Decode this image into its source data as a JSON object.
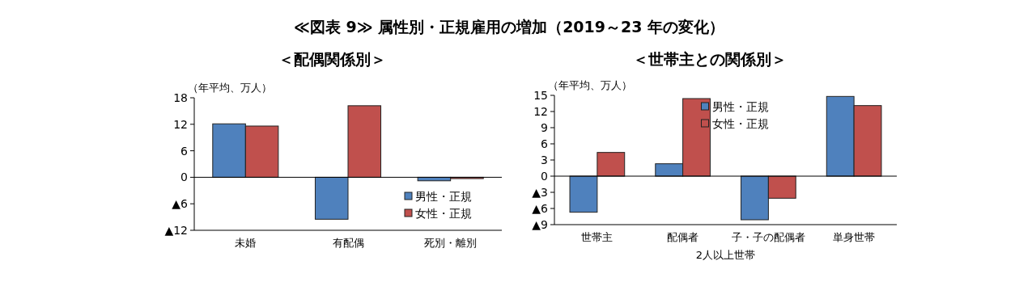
{
  "chart_data": [
    {
      "type": "bar",
      "title": "≪図表 9≫ 属性別・正規雇用の増加（2019～23 年の変化）",
      "subtitle": "＜配偶関係別＞",
      "ylabel": "（年平均、万人）",
      "categories": [
        "未婚",
        "有配偶",
        "死別・離別"
      ],
      "series": [
        {
          "name": "男性・正規",
          "color": "#4f81bd",
          "values": [
            12.1,
            -9.5,
            -0.8
          ]
        },
        {
          "name": "女性・正規",
          "color": "#c0504d",
          "values": [
            11.6,
            16.2,
            -0.3
          ]
        }
      ],
      "ylim": [
        -12,
        18
      ],
      "yticks": [
        {
          "value": -12,
          "label": "▲12"
        },
        {
          "value": -6,
          "label": "▲6"
        },
        0,
        6,
        12,
        18
      ],
      "legend": "bottom right"
    },
    {
      "type": "bar",
      "subtitle": "＜世帯主との関係別＞",
      "ylabel": "（年平均、万人）",
      "categories": [
        "世帯主",
        "配偶者",
        "子・子の配偶者",
        "単身世帯"
      ],
      "series": [
        {
          "name": "男性・正規",
          "color": "#4f81bd",
          "values": [
            -6.7,
            2.3,
            -8.1,
            14.8
          ]
        },
        {
          "name": "女性・正規",
          "color": "#c0504d",
          "values": [
            4.4,
            14.4,
            -4.1,
            13.1
          ]
        }
      ],
      "ylim": [
        -9,
        15
      ],
      "yticks": [
        {
          "value": -9,
          "label": "▲9"
        },
        {
          "value": -6,
          "label": "▲6"
        },
        {
          "value": -3,
          "label": "▲3"
        },
        0,
        3,
        6,
        9,
        12,
        15
      ],
      "legend": "top",
      "annotations": [
        "2人以上世帯"
      ]
    }
  ]
}
